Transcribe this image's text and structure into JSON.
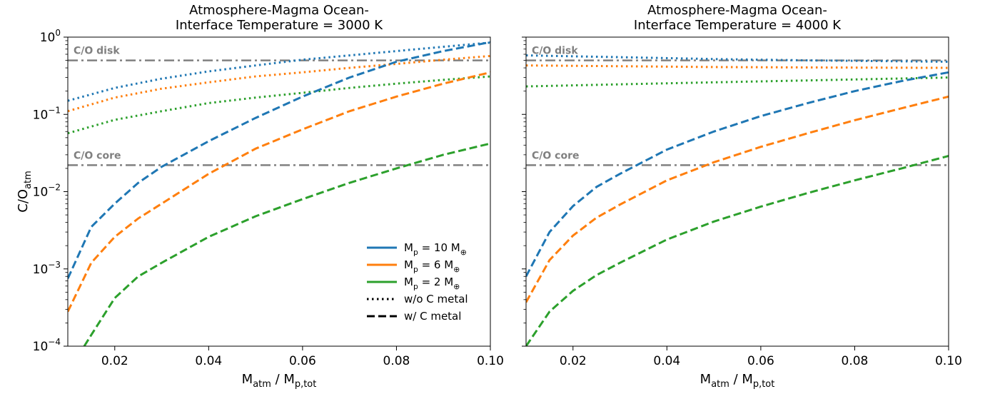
{
  "chart_data": [
    {
      "type": "line",
      "title_lines": [
        "Atmosphere-Magma Ocean-",
        "Interface Temperature = 3000 K"
      ],
      "xlabel": {
        "main": "M",
        "sub1": "atm",
        "mid": " / M",
        "sub2": "p,tot"
      },
      "ylabel": {
        "main": "C/O",
        "sub": "atm"
      },
      "xlim": [
        0.01,
        0.1
      ],
      "ylim": [
        0.0001,
        1
      ],
      "yscale": "log",
      "xticks": [
        {
          "value": 0.02,
          "label": "0.02"
        },
        {
          "value": 0.04,
          "label": "0.04"
        },
        {
          "value": 0.06,
          "label": "0.06"
        },
        {
          "value": 0.08,
          "label": "0.08"
        },
        {
          "value": 0.1,
          "label": "0.10"
        }
      ],
      "yticks": [
        {
          "value": 0.0001,
          "base": "10",
          "exp": "−4"
        },
        {
          "value": 0.001,
          "base": "10",
          "exp": "−3"
        },
        {
          "value": 0.01,
          "base": "10",
          "exp": "−2"
        },
        {
          "value": 0.1,
          "base": "10",
          "exp": "−1"
        },
        {
          "value": 1,
          "base": "10",
          "exp": "0"
        }
      ],
      "reference_lines": [
        {
          "label": "C/O disk",
          "y": 0.5
        },
        {
          "label": "C/O core",
          "y": 0.022
        }
      ],
      "series": [
        {
          "mass": "10",
          "color": "#1f77b4",
          "style": "dotted",
          "x": [
            0.01,
            0.02,
            0.03,
            0.04,
            0.05,
            0.06,
            0.07,
            0.08,
            0.09,
            0.1
          ],
          "y": [
            0.15,
            0.22,
            0.29,
            0.36,
            0.43,
            0.51,
            0.58,
            0.66,
            0.75,
            0.85
          ]
        },
        {
          "mass": "6",
          "color": "#ff7f0e",
          "style": "dotted",
          "x": [
            0.01,
            0.02,
            0.03,
            0.04,
            0.05,
            0.06,
            0.07,
            0.08,
            0.09,
            0.1
          ],
          "y": [
            0.11,
            0.165,
            0.215,
            0.26,
            0.31,
            0.35,
            0.4,
            0.45,
            0.51,
            0.57
          ]
        },
        {
          "mass": "2",
          "color": "#2ca02c",
          "style": "dotted",
          "x": [
            0.01,
            0.02,
            0.03,
            0.04,
            0.05,
            0.06,
            0.07,
            0.08,
            0.09,
            0.1
          ],
          "y": [
            0.057,
            0.085,
            0.11,
            0.14,
            0.165,
            0.19,
            0.22,
            0.25,
            0.28,
            0.31
          ]
        },
        {
          "mass": "10",
          "color": "#1f77b4",
          "style": "dashed",
          "x": [
            0.01,
            0.015,
            0.02,
            0.025,
            0.03,
            0.04,
            0.05,
            0.06,
            0.07,
            0.08,
            0.09,
            0.1
          ],
          "y": [
            0.00075,
            0.0035,
            0.007,
            0.013,
            0.021,
            0.045,
            0.09,
            0.17,
            0.3,
            0.48,
            0.66,
            0.86
          ]
        },
        {
          "mass": "6",
          "color": "#ff7f0e",
          "style": "dashed",
          "x": [
            0.01,
            0.015,
            0.02,
            0.025,
            0.03,
            0.04,
            0.05,
            0.06,
            0.07,
            0.08,
            0.09,
            0.1
          ],
          "y": [
            0.00028,
            0.0012,
            0.0026,
            0.0045,
            0.007,
            0.017,
            0.036,
            0.064,
            0.11,
            0.17,
            0.25,
            0.35
          ]
        },
        {
          "mass": "2",
          "color": "#2ca02c",
          "style": "dashed",
          "x": [
            0.0135,
            0.015,
            0.02,
            0.025,
            0.03,
            0.04,
            0.05,
            0.06,
            0.07,
            0.08,
            0.09,
            0.1
          ],
          "y": [
            0.0001,
            0.00014,
            0.00042,
            0.0008,
            0.0012,
            0.0026,
            0.0048,
            0.008,
            0.013,
            0.02,
            0.03,
            0.042
          ]
        }
      ]
    },
    {
      "type": "line",
      "title_lines": [
        "Atmosphere-Magma Ocean-",
        "Interface Temperature = 4000 K"
      ],
      "xlabel": {
        "main": "M",
        "sub1": "atm",
        "mid": " / M",
        "sub2": "p,tot"
      },
      "ylabel": null,
      "xlim": [
        0.01,
        0.1
      ],
      "ylim": [
        0.0001,
        1
      ],
      "yscale": "log",
      "xticks": [
        {
          "value": 0.02,
          "label": "0.02"
        },
        {
          "value": 0.04,
          "label": "0.04"
        },
        {
          "value": 0.06,
          "label": "0.06"
        },
        {
          "value": 0.08,
          "label": "0.08"
        },
        {
          "value": 0.1,
          "label": "0.10"
        }
      ],
      "yticks": [],
      "reference_lines": [
        {
          "label": "C/O disk",
          "y": 0.5
        },
        {
          "label": "C/O core",
          "y": 0.022
        }
      ],
      "series": [
        {
          "mass": "10",
          "color": "#1f77b4",
          "style": "dotted",
          "x": [
            0.01,
            0.03,
            0.05,
            0.07,
            0.1
          ],
          "y": [
            0.58,
            0.55,
            0.52,
            0.5,
            0.48
          ]
        },
        {
          "mass": "6",
          "color": "#ff7f0e",
          "style": "dotted",
          "x": [
            0.01,
            0.03,
            0.05,
            0.07,
            0.1
          ],
          "y": [
            0.43,
            0.42,
            0.41,
            0.405,
            0.4
          ]
        },
        {
          "mass": "2",
          "color": "#2ca02c",
          "style": "dotted",
          "x": [
            0.01,
            0.03,
            0.05,
            0.07,
            0.1
          ],
          "y": [
            0.23,
            0.245,
            0.26,
            0.275,
            0.3
          ]
        },
        {
          "mass": "10",
          "color": "#1f77b4",
          "style": "dashed",
          "x": [
            0.01,
            0.015,
            0.02,
            0.025,
            0.03,
            0.04,
            0.05,
            0.06,
            0.07,
            0.08,
            0.09,
            0.1
          ],
          "y": [
            0.0008,
            0.003,
            0.0065,
            0.0115,
            0.017,
            0.035,
            0.06,
            0.095,
            0.14,
            0.2,
            0.27,
            0.35
          ]
        },
        {
          "mass": "6",
          "color": "#ff7f0e",
          "style": "dashed",
          "x": [
            0.01,
            0.015,
            0.02,
            0.025,
            0.03,
            0.04,
            0.05,
            0.06,
            0.07,
            0.08,
            0.09,
            0.1
          ],
          "y": [
            0.00037,
            0.0013,
            0.0027,
            0.0046,
            0.0068,
            0.014,
            0.024,
            0.038,
            0.057,
            0.084,
            0.12,
            0.17
          ]
        },
        {
          "mass": "2",
          "color": "#2ca02c",
          "style": "dashed",
          "x": [
            0.01,
            0.015,
            0.02,
            0.025,
            0.03,
            0.04,
            0.05,
            0.06,
            0.07,
            0.08,
            0.09,
            0.1
          ],
          "y": [
            0.0001,
            0.00028,
            0.00052,
            0.00083,
            0.0012,
            0.0024,
            0.0041,
            0.0064,
            0.0096,
            0.014,
            0.02,
            0.029
          ]
        }
      ]
    }
  ],
  "legend": {
    "placement": "lower-right of left panel",
    "entries": [
      {
        "kind": "series",
        "prefix": "M",
        "sub": "p",
        "mass": "10",
        "unit": "M",
        "unit_sub": "⊕",
        "color": "#1f77b4"
      },
      {
        "kind": "series",
        "prefix": "M",
        "sub": "p",
        "mass": "6",
        "unit": "M",
        "unit_sub": "⊕",
        "color": "#ff7f0e"
      },
      {
        "kind": "series",
        "prefix": "M",
        "sub": "p",
        "mass": "2",
        "unit": "M",
        "unit_sub": "⊕",
        "color": "#2ca02c"
      },
      {
        "kind": "style",
        "label": "w/o C metal",
        "style": "dotted",
        "color": "#000000"
      },
      {
        "kind": "style",
        "label": "w/ C metal",
        "style": "dashed",
        "color": "#000000"
      }
    ]
  }
}
